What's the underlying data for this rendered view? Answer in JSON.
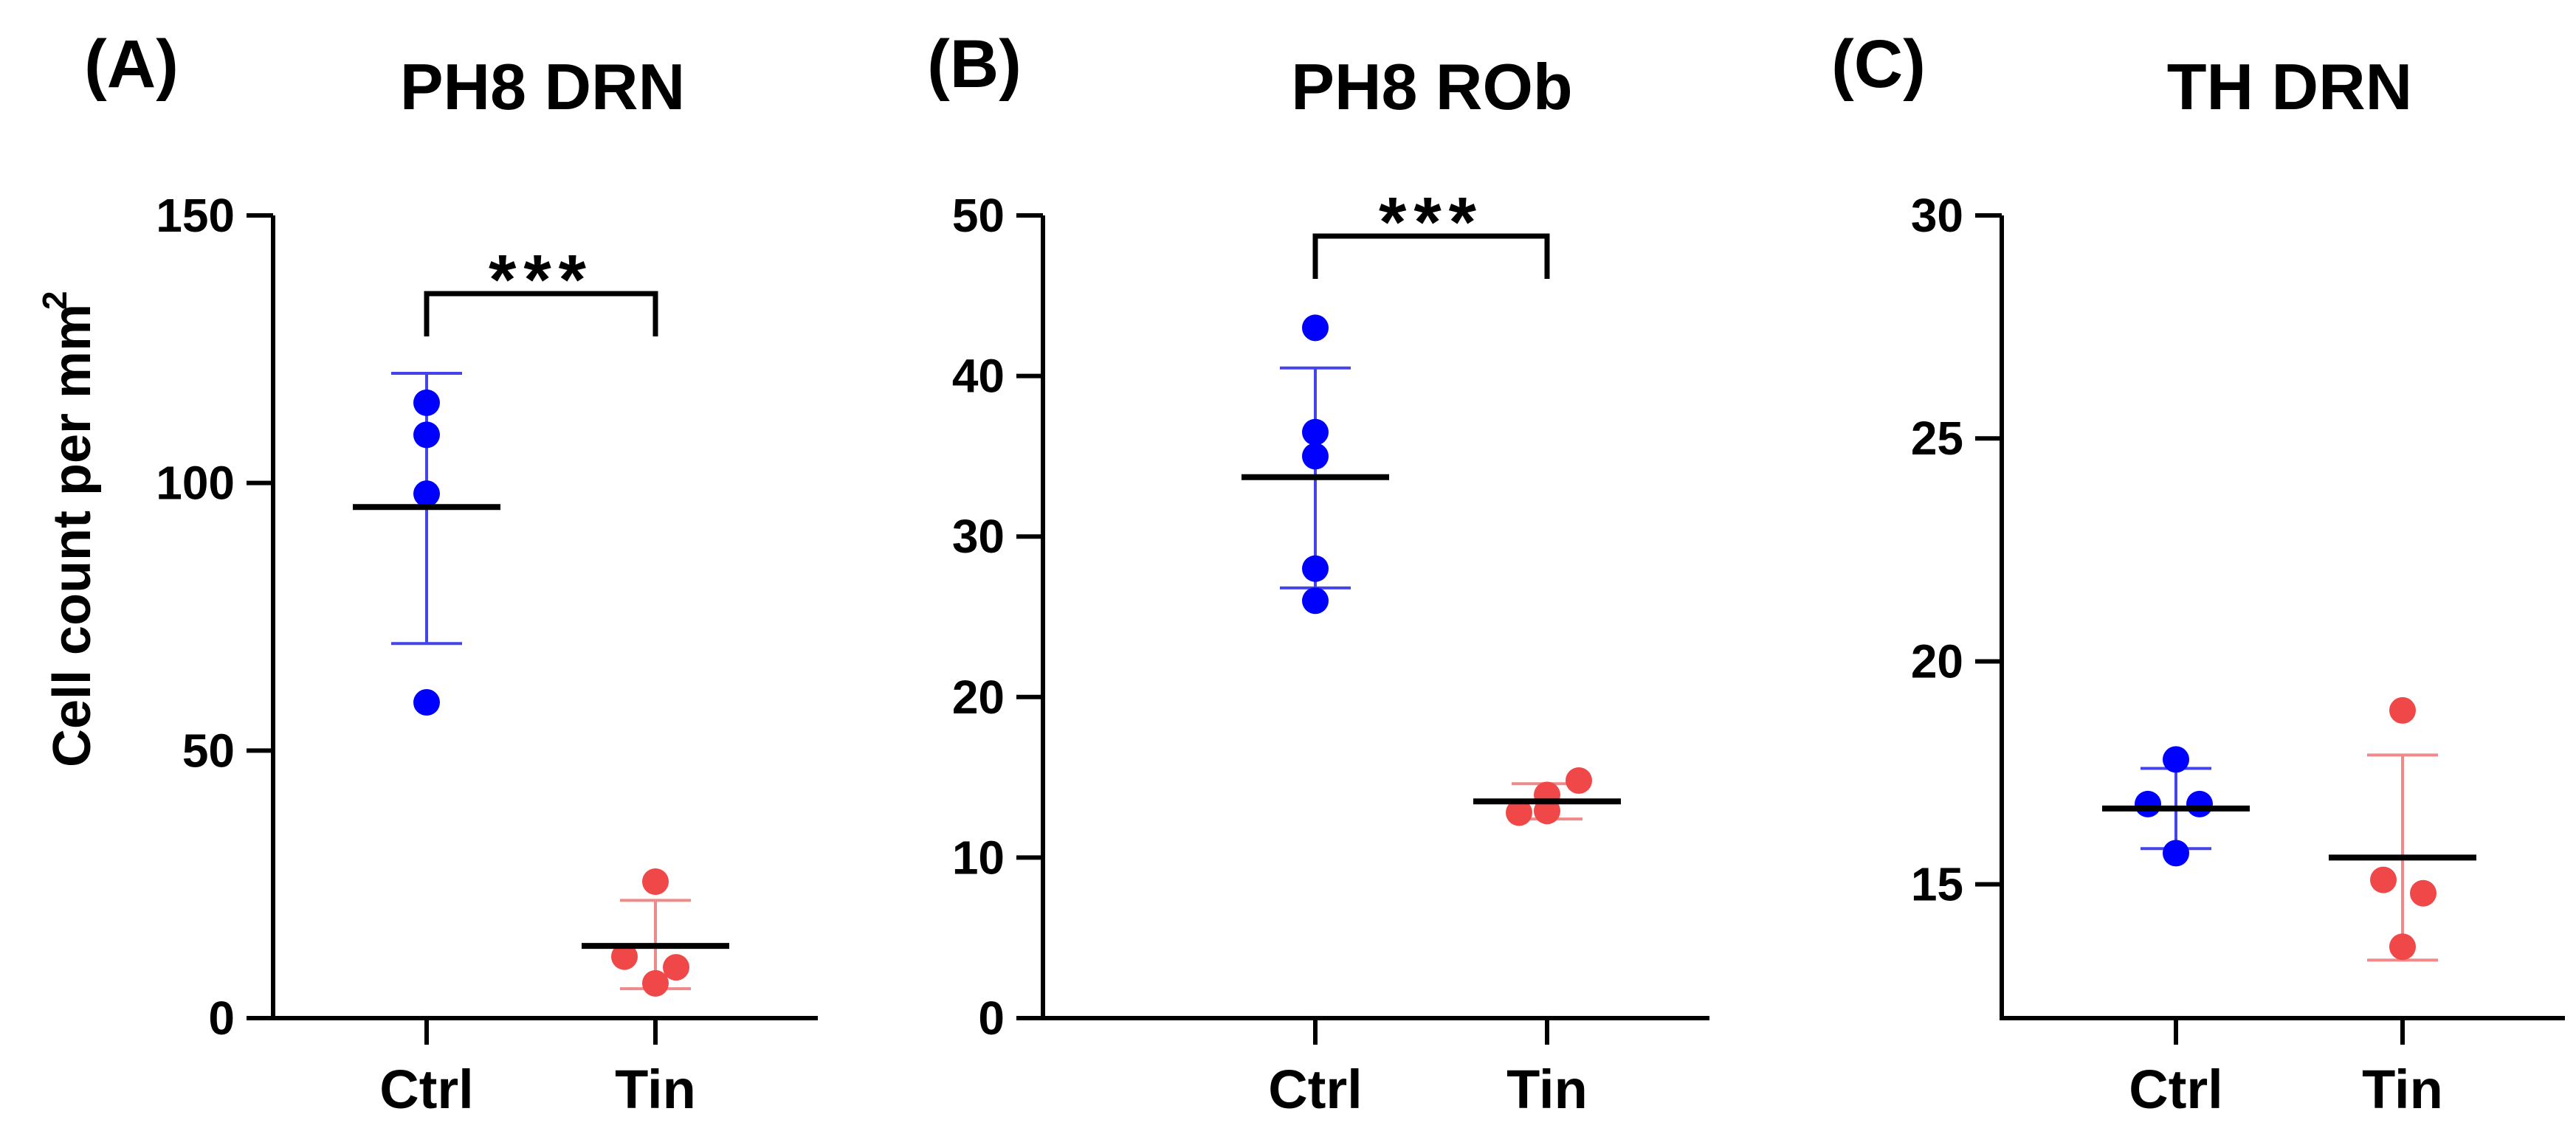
{
  "y_axis_label": "Cell count per mm",
  "y_axis_label_superscript": "2",
  "colors": {
    "ctrl": "#0000ff",
    "tin": "#f04848",
    "ctrl_err": "#4444ee",
    "tin_err": "#f08a8a",
    "axis": "#000000"
  },
  "chart_data": [
    {
      "type": "scatter",
      "panel_label": "(A)",
      "title": "PH8 DRN",
      "categories": [
        "Ctrl",
        "Tin"
      ],
      "ylim": [
        0,
        150
      ],
      "yticks": [
        0,
        50,
        100,
        150
      ],
      "series": [
        {
          "name": "Ctrl",
          "points": [
            115,
            109,
            98,
            59
          ],
          "mean": 95.5,
          "err_low": 70,
          "err_high": 120.5
        },
        {
          "name": "Tin",
          "points": [
            25.5,
            11.5,
            9.5,
            6.5
          ],
          "mean": 13.5,
          "err_low": 5.5,
          "err_high": 22
        }
      ],
      "significance": {
        "label": "***",
        "between": [
          "Ctrl",
          "Tin"
        ]
      }
    },
    {
      "type": "scatter",
      "panel_label": "(B)",
      "title": "PH8 ROb",
      "categories": [
        "Ctrl",
        "Tin"
      ],
      "ylim": [
        0,
        50
      ],
      "yticks": [
        0,
        10,
        20,
        30,
        40,
        50
      ],
      "series": [
        {
          "name": "Ctrl",
          "points": [
            43,
            36.5,
            35,
            28,
            26
          ],
          "mean": 33.7,
          "err_low": 26.8,
          "err_high": 40.5
        },
        {
          "name": "Tin",
          "points": [
            14.8,
            13.9,
            12.9,
            12.8
          ],
          "mean": 13.5,
          "err_low": 12.4,
          "err_high": 14.6
        }
      ],
      "significance": {
        "label": "***",
        "between": [
          "Ctrl",
          "Tin"
        ]
      }
    },
    {
      "type": "scatter",
      "panel_label": "(C)",
      "title": "TH DRN",
      "categories": [
        "Ctrl",
        "Tin"
      ],
      "ylim": [
        12,
        30
      ],
      "yticks": [
        15,
        20,
        25,
        30
      ],
      "series": [
        {
          "name": "Ctrl",
          "points": [
            17.8,
            16.8,
            16.8,
            15.7
          ],
          "mean": 16.7,
          "err_low": 15.8,
          "err_high": 17.6
        },
        {
          "name": "Tin",
          "points": [
            18.9,
            15.1,
            14.8,
            13.6
          ],
          "mean": 15.6,
          "err_low": 13.3,
          "err_high": 17.9
        }
      ],
      "significance": null
    }
  ]
}
